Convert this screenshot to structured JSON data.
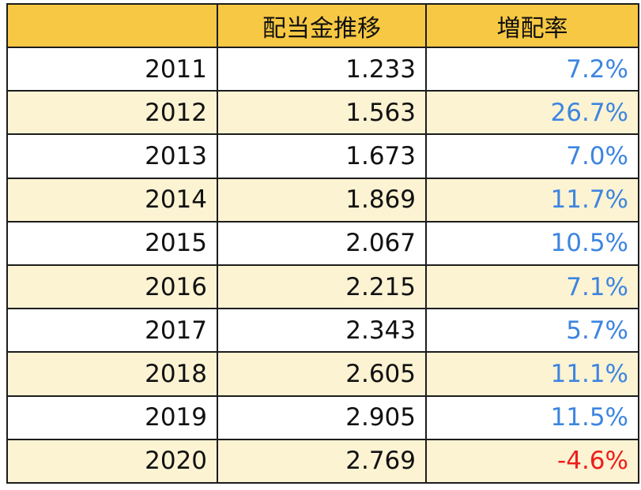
{
  "table": {
    "headers": [
      "",
      "配当金推移",
      "増配率"
    ],
    "rows": [
      {
        "year": "2011",
        "dividend": "1.233",
        "rate": "7.2%",
        "rate_sign": "pos"
      },
      {
        "year": "2012",
        "dividend": "1.563",
        "rate": "26.7%",
        "rate_sign": "pos"
      },
      {
        "year": "2013",
        "dividend": "1.673",
        "rate": "7.0%",
        "rate_sign": "pos"
      },
      {
        "year": "2014",
        "dividend": "1.869",
        "rate": "11.7%",
        "rate_sign": "pos"
      },
      {
        "year": "2015",
        "dividend": "2.067",
        "rate": "10.5%",
        "rate_sign": "pos"
      },
      {
        "year": "2016",
        "dividend": "2.215",
        "rate": "7.1%",
        "rate_sign": "pos"
      },
      {
        "year": "2017",
        "dividend": "2.343",
        "rate": "5.7%",
        "rate_sign": "pos"
      },
      {
        "year": "2018",
        "dividend": "2.605",
        "rate": "11.1%",
        "rate_sign": "pos"
      },
      {
        "year": "2019",
        "dividend": "2.905",
        "rate": "11.5%",
        "rate_sign": "pos"
      },
      {
        "year": "2020",
        "dividend": "2.769",
        "rate": "-4.6%",
        "rate_sign": "neg"
      }
    ]
  },
  "colors": {
    "header_bg": "#f7c843",
    "stripe_bg": "#fcf3d3",
    "positive_text": "#3d85e0",
    "negative_text": "#ef1c1c"
  }
}
